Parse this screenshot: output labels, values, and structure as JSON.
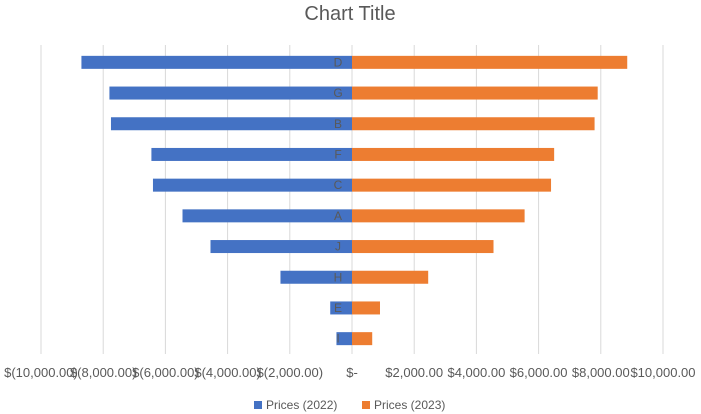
{
  "chart_data": {
    "type": "bar",
    "orientation": "horizontal",
    "title": "Chart Title",
    "categories": [
      "D",
      "G",
      "B",
      "F",
      "C",
      "A",
      "J",
      "H",
      "E",
      "I"
    ],
    "series": [
      {
        "name": "Prices (2022)",
        "color": "#4472C4",
        "values": [
          -8700,
          -7800,
          -7750,
          -6450,
          -6400,
          -5450,
          -4550,
          -2300,
          -700,
          -500
        ]
      },
      {
        "name": "Prices (2023)",
        "color": "#ED7D31",
        "values": [
          8850,
          7900,
          7800,
          6500,
          6400,
          5550,
          4550,
          2450,
          900,
          650
        ]
      }
    ],
    "x_ticks": [
      -10000,
      -8000,
      -6000,
      -4000,
      -2000,
      0,
      2000,
      4000,
      6000,
      8000,
      10000
    ],
    "x_tick_labels": [
      "$(10,000.00)",
      "$(8,000.00)",
      "$(6,000.00)",
      "$(4,000.00)",
      "$(2,000.00)",
      "$-",
      "$2,000.00",
      "$4,000.00",
      "$6,000.00",
      "$8,000.00",
      "$10,000.00"
    ],
    "xlim": [
      -10000,
      10000
    ],
    "grid": "vertical",
    "legend_position": "bottom"
  }
}
